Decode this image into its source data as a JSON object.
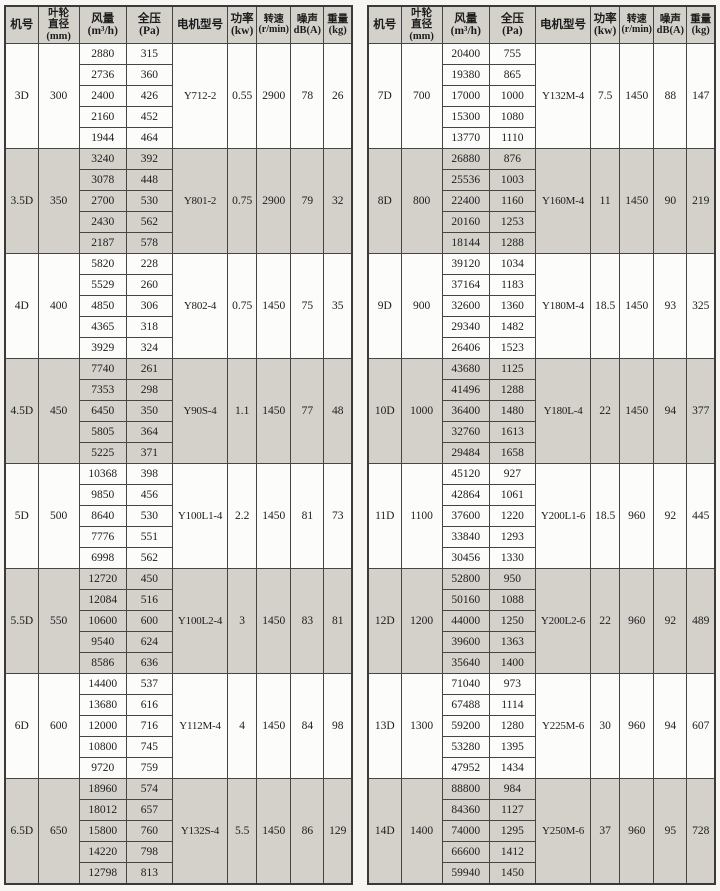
{
  "colors": {
    "band_gray": "#d4d1cb",
    "row_white": "#fcfcfb",
    "border": "#454545",
    "page_bg": "#f7f6f3",
    "text": "#1c1c1c"
  },
  "headers": {
    "model": [
      "机号"
    ],
    "diameter": [
      "叶轮",
      "直径",
      "(mm)"
    ],
    "airflow": [
      "风量",
      "(m³/h)"
    ],
    "pressure": [
      "全压",
      "(Pa)"
    ],
    "motor": [
      "电机型号"
    ],
    "power": [
      "功率",
      "(kw)"
    ],
    "speed": [
      "转速",
      "(r/min)"
    ],
    "noise": [
      "噪声",
      "dB(A)"
    ],
    "weight": [
      "重量",
      "(kg)"
    ]
  },
  "tables": [
    {
      "groups": [
        {
          "model": "3D",
          "diameter": "300",
          "motor": "Y712-2",
          "power": "0.55",
          "speed": "2900",
          "noise": "78",
          "weight": "26",
          "rows": [
            [
              "2880",
              "315"
            ],
            [
              "2736",
              "360"
            ],
            [
              "2400",
              "426"
            ],
            [
              "2160",
              "452"
            ],
            [
              "1944",
              "464"
            ]
          ]
        },
        {
          "model": "3.5D",
          "diameter": "350",
          "motor": "Y801-2",
          "power": "0.75",
          "speed": "2900",
          "noise": "79",
          "weight": "32",
          "rows": [
            [
              "3240",
              "392"
            ],
            [
              "3078",
              "448"
            ],
            [
              "2700",
              "530"
            ],
            [
              "2430",
              "562"
            ],
            [
              "2187",
              "578"
            ]
          ]
        },
        {
          "model": "4D",
          "diameter": "400",
          "motor": "Y802-4",
          "power": "0.75",
          "speed": "1450",
          "noise": "75",
          "weight": "35",
          "rows": [
            [
              "5820",
              "228"
            ],
            [
              "5529",
              "260"
            ],
            [
              "4850",
              "306"
            ],
            [
              "4365",
              "318"
            ],
            [
              "3929",
              "324"
            ]
          ]
        },
        {
          "model": "4.5D",
          "diameter": "450",
          "motor": "Y90S-4",
          "power": "1.1",
          "speed": "1450",
          "noise": "77",
          "weight": "48",
          "rows": [
            [
              "7740",
              "261"
            ],
            [
              "7353",
              "298"
            ],
            [
              "6450",
              "350"
            ],
            [
              "5805",
              "364"
            ],
            [
              "5225",
              "371"
            ]
          ]
        },
        {
          "model": "5D",
          "diameter": "500",
          "motor": "Y100L1-4",
          "power": "2.2",
          "speed": "1450",
          "noise": "81",
          "weight": "73",
          "rows": [
            [
              "10368",
              "398"
            ],
            [
              "9850",
              "456"
            ],
            [
              "8640",
              "530"
            ],
            [
              "7776",
              "551"
            ],
            [
              "6998",
              "562"
            ]
          ]
        },
        {
          "model": "5.5D",
          "diameter": "550",
          "motor": "Y100L2-4",
          "power": "3",
          "speed": "1450",
          "noise": "83",
          "weight": "81",
          "rows": [
            [
              "12720",
              "450"
            ],
            [
              "12084",
              "516"
            ],
            [
              "10600",
              "600"
            ],
            [
              "9540",
              "624"
            ],
            [
              "8586",
              "636"
            ]
          ]
        },
        {
          "model": "6D",
          "diameter": "600",
          "motor": "Y112M-4",
          "power": "4",
          "speed": "1450",
          "noise": "84",
          "weight": "98",
          "rows": [
            [
              "14400",
              "537"
            ],
            [
              "13680",
              "616"
            ],
            [
              "12000",
              "716"
            ],
            [
              "10800",
              "745"
            ],
            [
              "9720",
              "759"
            ]
          ]
        },
        {
          "model": "6.5D",
          "diameter": "650",
          "motor": "Y132S-4",
          "power": "5.5",
          "speed": "1450",
          "noise": "86",
          "weight": "129",
          "rows": [
            [
              "18960",
              "574"
            ],
            [
              "18012",
              "657"
            ],
            [
              "15800",
              "760"
            ],
            [
              "14220",
              "798"
            ],
            [
              "12798",
              "813"
            ]
          ]
        }
      ]
    },
    {
      "groups": [
        {
          "model": "7D",
          "diameter": "700",
          "motor": "Y132M-4",
          "power": "7.5",
          "speed": "1450",
          "noise": "88",
          "weight": "147",
          "rows": [
            [
              "20400",
              "755"
            ],
            [
              "19380",
              "865"
            ],
            [
              "17000",
              "1000"
            ],
            [
              "15300",
              "1080"
            ],
            [
              "13770",
              "1110"
            ]
          ]
        },
        {
          "model": "8D",
          "diameter": "800",
          "motor": "Y160M-4",
          "power": "11",
          "speed": "1450",
          "noise": "90",
          "weight": "219",
          "rows": [
            [
              "26880",
              "876"
            ],
            [
              "25536",
              "1003"
            ],
            [
              "22400",
              "1160"
            ],
            [
              "20160",
              "1253"
            ],
            [
              "18144",
              "1288"
            ]
          ]
        },
        {
          "model": "9D",
          "diameter": "900",
          "motor": "Y180M-4",
          "power": "18.5",
          "speed": "1450",
          "noise": "93",
          "weight": "325",
          "rows": [
            [
              "39120",
              "1034"
            ],
            [
              "37164",
              "1183"
            ],
            [
              "32600",
              "1360"
            ],
            [
              "29340",
              "1482"
            ],
            [
              "26406",
              "1523"
            ]
          ]
        },
        {
          "model": "10D",
          "diameter": "1000",
          "motor": "Y180L-4",
          "power": "22",
          "speed": "1450",
          "noise": "94",
          "weight": "377",
          "rows": [
            [
              "43680",
              "1125"
            ],
            [
              "41496",
              "1288"
            ],
            [
              "36400",
              "1480"
            ],
            [
              "32760",
              "1613"
            ],
            [
              "29484",
              "1658"
            ]
          ]
        },
        {
          "model": "11D",
          "diameter": "1100",
          "motor": "Y200L1-6",
          "power": "18.5",
          "speed": "960",
          "noise": "92",
          "weight": "445",
          "rows": [
            [
              "45120",
              "927"
            ],
            [
              "42864",
              "1061"
            ],
            [
              "37600",
              "1220"
            ],
            [
              "33840",
              "1293"
            ],
            [
              "30456",
              "1330"
            ]
          ]
        },
        {
          "model": "12D",
          "diameter": "1200",
          "motor": "Y200L2-6",
          "power": "22",
          "speed": "960",
          "noise": "92",
          "weight": "489",
          "rows": [
            [
              "52800",
              "950"
            ],
            [
              "50160",
              "1088"
            ],
            [
              "44000",
              "1250"
            ],
            [
              "39600",
              "1363"
            ],
            [
              "35640",
              "1400"
            ]
          ]
        },
        {
          "model": "13D",
          "diameter": "1300",
          "motor": "Y225M-6",
          "power": "30",
          "speed": "960",
          "noise": "94",
          "weight": "607",
          "rows": [
            [
              "71040",
              "973"
            ],
            [
              "67488",
              "1114"
            ],
            [
              "59200",
              "1280"
            ],
            [
              "53280",
              "1395"
            ],
            [
              "47952",
              "1434"
            ]
          ]
        },
        {
          "model": "14D",
          "diameter": "1400",
          "motor": "Y250M-6",
          "power": "37",
          "speed": "960",
          "noise": "95",
          "weight": "728",
          "rows": [
            [
              "88800",
              "984"
            ],
            [
              "84360",
              "1127"
            ],
            [
              "74000",
              "1295"
            ],
            [
              "66600",
              "1412"
            ],
            [
              "59940",
              "1450"
            ]
          ]
        }
      ]
    }
  ]
}
